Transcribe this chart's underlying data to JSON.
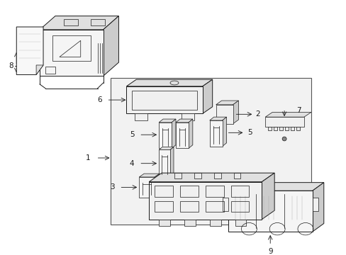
{
  "bg_color": "#ffffff",
  "lc": "#1a1a1a",
  "gray_fill": "#f2f2f2",
  "gray_mid": "#e0e0e0",
  "gray_dark": "#cccccc",
  "lw_main": 0.7,
  "lw_thin": 0.5,
  "lw_thick": 0.9,
  "figsize": [
    4.89,
    3.6
  ],
  "dpi": 100
}
